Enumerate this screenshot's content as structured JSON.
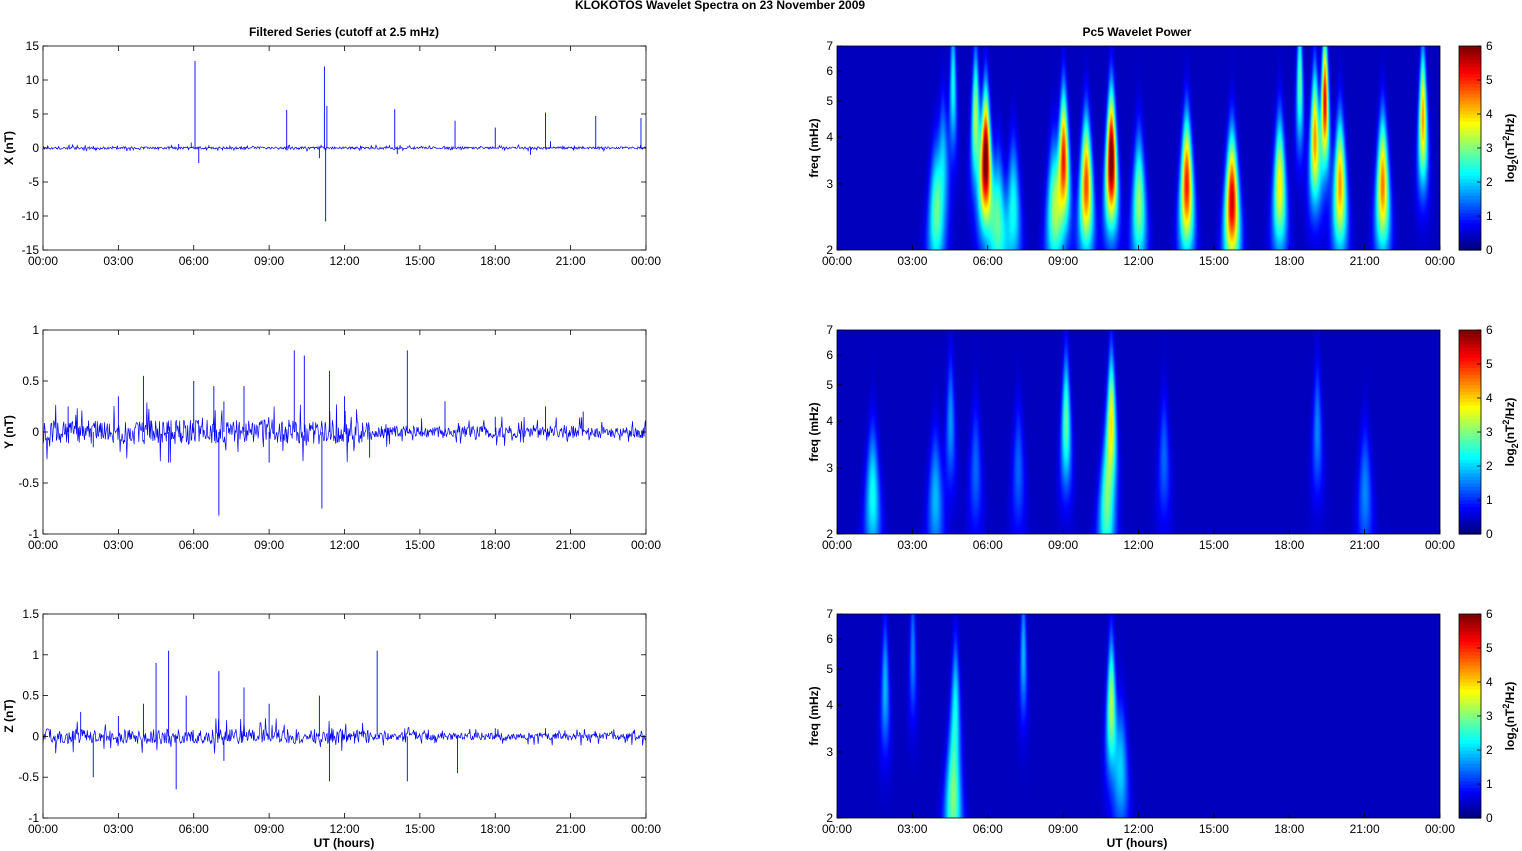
{
  "figure_title": "KLOKOTOS Wavelet Spectra on 23 November  2009",
  "left_title": "Filtered Series (cutoff at 2.5 mHz)",
  "right_title": "Pc5 Wavelet Power",
  "x_label": "UT (hours)",
  "colorbar_label": "log2(nT^2/Hz)",
  "colormap": "jet",
  "line_color": "#0000ff",
  "chart_data": [
    {
      "type": "line",
      "ylabel": "X (nT)",
      "x_ticks": [
        "00:00",
        "03:00",
        "06:00",
        "09:00",
        "12:00",
        "15:00",
        "18:00",
        "21:00",
        "00:00"
      ],
      "y_ticks": [
        "15",
        "10",
        "5",
        "0",
        "-5",
        "-10",
        "-15"
      ],
      "xlim": [
        0,
        24
      ],
      "ylim": [
        -15,
        15
      ],
      "series": [
        {
          "x": [
            0,
            2,
            4,
            5.4,
            5.9,
            6.05,
            6.2,
            6.6,
            8,
            9.7,
            9.75,
            11.0,
            11.2,
            11.25,
            11.3,
            11.6,
            14.0,
            14.1,
            16.4,
            18.0,
            19.4,
            20.0,
            20.2,
            22.0,
            23.8,
            24
          ],
          "y": [
            0,
            0.3,
            -0.2,
            0.6,
            0.8,
            12.8,
            -2.2,
            0.4,
            -0.3,
            5.6,
            0.2,
            -1.5,
            12.0,
            -10.8,
            6.2,
            0.2,
            5.7,
            -0.9,
            4.0,
            3.0,
            -1.0,
            5.2,
            1.0,
            4.7,
            4.4,
            0
          ]
        }
      ]
    },
    {
      "type": "line",
      "ylabel": "Y (nT)",
      "x_ticks": [
        "00:00",
        "03:00",
        "06:00",
        "09:00",
        "12:00",
        "15:00",
        "18:00",
        "21:00",
        "00:00"
      ],
      "y_ticks": [
        "1",
        "0.5",
        "0",
        "-0.5",
        "-1"
      ],
      "xlim": [
        0,
        24
      ],
      "ylim": [
        -1,
        1
      ],
      "series": [
        {
          "x": [
            0,
            1,
            2,
            3,
            4,
            5,
            6,
            6.8,
            7.0,
            7.2,
            8,
            9,
            10,
            10.4,
            11.1,
            11.4,
            12,
            13,
            14.5,
            16,
            18,
            20,
            21.5,
            22,
            24
          ],
          "y": [
            0,
            0.25,
            -0.15,
            0.35,
            0.55,
            -0.3,
            0.5,
            0.45,
            -0.82,
            0.3,
            0.45,
            -0.3,
            0.8,
            0.75,
            -0.75,
            0.6,
            0.35,
            -0.25,
            0.8,
            0.3,
            0.15,
            0.25,
            0.2,
            -0.05,
            0
          ]
        }
      ]
    },
    {
      "type": "line",
      "ylabel": "Z (nT)",
      "x_ticks": [
        "00:00",
        "03:00",
        "06:00",
        "09:00",
        "12:00",
        "15:00",
        "18:00",
        "21:00",
        "00:00"
      ],
      "y_ticks": [
        "1.5",
        "1",
        "0.5",
        "0",
        "-0.5",
        "-1"
      ],
      "xlim": [
        0,
        24
      ],
      "ylim": [
        -1,
        1.5
      ],
      "series": [
        {
          "x": [
            0,
            1.5,
            2,
            3,
            4,
            4.5,
            5.0,
            5.3,
            5.7,
            7,
            7.2,
            8,
            9,
            11,
            11.4,
            13.3,
            14.5,
            16.5,
            18,
            20,
            22,
            24
          ],
          "y": [
            0,
            0.3,
            -0.5,
            0.25,
            0.4,
            0.9,
            1.05,
            -0.65,
            0.5,
            0.8,
            -0.3,
            0.6,
            0.4,
            0.5,
            -0.55,
            1.05,
            -0.55,
            -0.45,
            0.1,
            0.1,
            0.05,
            0
          ]
        }
      ]
    },
    {
      "type": "heatmap",
      "ylabel": "freq (mHz)",
      "x_ticks": [
        "00:00",
        "03:00",
        "06:00",
        "09:00",
        "12:00",
        "15:00",
        "18:00",
        "21:00",
        "00:00"
      ],
      "y_ticks": [
        "7",
        "6",
        "5",
        "4",
        "3",
        "2"
      ],
      "xlim": [
        0,
        24
      ],
      "ylim": [
        2,
        7
      ],
      "y_scale": "log",
      "colorbar_ticks": [
        "6",
        "5",
        "4",
        "3",
        "2",
        "1",
        "0"
      ],
      "clim": [
        0,
        6
      ],
      "hotspots": [
        {
          "t": 3.9,
          "f": 2.5,
          "p": 2.2
        },
        {
          "t": 4.2,
          "f": 3.4,
          "p": 1.6
        },
        {
          "t": 4.6,
          "f": 5.5,
          "p": 2.0
        },
        {
          "t": 5.5,
          "f": 4.5,
          "p": 3.0
        },
        {
          "t": 5.9,
          "f": 3.5,
          "p": 6.0
        },
        {
          "t": 6.4,
          "f": 2.4,
          "p": 2.3
        },
        {
          "t": 7.0,
          "f": 2.6,
          "p": 2.0
        },
        {
          "t": 8.6,
          "f": 2.6,
          "p": 2.5
        },
        {
          "t": 9.0,
          "f": 3.5,
          "p": 4.8
        },
        {
          "t": 9.9,
          "f": 3.0,
          "p": 4.5
        },
        {
          "t": 10.9,
          "f": 3.5,
          "p": 6.0
        },
        {
          "t": 12.0,
          "f": 2.7,
          "p": 2.8
        },
        {
          "t": 13.9,
          "f": 3.0,
          "p": 4.8
        },
        {
          "t": 15.7,
          "f": 2.7,
          "p": 5.2
        },
        {
          "t": 17.6,
          "f": 3.0,
          "p": 3.5
        },
        {
          "t": 18.4,
          "f": 5.6,
          "p": 2.5
        },
        {
          "t": 19.0,
          "f": 4.0,
          "p": 4.0
        },
        {
          "t": 19.4,
          "f": 5.0,
          "p": 5.0
        },
        {
          "t": 20.0,
          "f": 3.0,
          "p": 4.0
        },
        {
          "t": 21.7,
          "f": 3.0,
          "p": 4.2
        },
        {
          "t": 23.3,
          "f": 4.5,
          "p": 4.0
        }
      ]
    },
    {
      "type": "heatmap",
      "ylabel": "freq (mHz)",
      "x_ticks": [
        "00:00",
        "03:00",
        "06:00",
        "09:00",
        "12:00",
        "15:00",
        "18:00",
        "21:00",
        "00:00"
      ],
      "y_ticks": [
        "7",
        "6",
        "5",
        "4",
        "3",
        "2"
      ],
      "xlim": [
        0,
        24
      ],
      "ylim": [
        2,
        7
      ],
      "y_scale": "log",
      "colorbar_ticks": [
        "6",
        "5",
        "4",
        "3",
        "2",
        "1",
        "0"
      ],
      "clim": [
        0,
        6
      ],
      "hotspots": [
        {
          "t": 1.4,
          "f": 2.55,
          "p": 2.0
        },
        {
          "t": 3.9,
          "f": 2.5,
          "p": 1.5
        },
        {
          "t": 4.5,
          "f": 4.0,
          "p": 1.3
        },
        {
          "t": 5.5,
          "f": 3.0,
          "p": 1.0
        },
        {
          "t": 7.2,
          "f": 3.0,
          "p": 1.0
        },
        {
          "t": 9.1,
          "f": 4.0,
          "p": 2.5
        },
        {
          "t": 10.9,
          "f": 4.0,
          "p": 3.5
        },
        {
          "t": 10.7,
          "f": 2.3,
          "p": 2.2
        },
        {
          "t": 13.0,
          "f": 3.2,
          "p": 1.0
        },
        {
          "t": 19.1,
          "f": 3.8,
          "p": 1.2
        },
        {
          "t": 21.0,
          "f": 2.6,
          "p": 1.2
        }
      ]
    },
    {
      "type": "heatmap",
      "ylabel": "freq (mHz)",
      "x_ticks": [
        "00:00",
        "03:00",
        "06:00",
        "09:00",
        "12:00",
        "15:00",
        "18:00",
        "21:00",
        "00:00"
      ],
      "y_ticks": [
        "7",
        "6",
        "5",
        "4",
        "3",
        "2"
      ],
      "xlim": [
        0,
        24
      ],
      "ylim": [
        2,
        7
      ],
      "y_scale": "log",
      "colorbar_ticks": [
        "6",
        "5",
        "4",
        "3",
        "2",
        "1",
        "0"
      ],
      "clim": [
        0,
        6
      ],
      "hotspots": [
        {
          "t": 1.9,
          "f": 4.5,
          "p": 1.5
        },
        {
          "t": 3.0,
          "f": 5.5,
          "p": 1.2
        },
        {
          "t": 4.6,
          "f": 2.2,
          "p": 2.5
        },
        {
          "t": 4.7,
          "f": 4.0,
          "p": 1.8
        },
        {
          "t": 7.4,
          "f": 5.5,
          "p": 1.5
        },
        {
          "t": 10.9,
          "f": 4.0,
          "p": 3.0
        },
        {
          "t": 11.3,
          "f": 2.7,
          "p": 1.5
        }
      ]
    }
  ]
}
